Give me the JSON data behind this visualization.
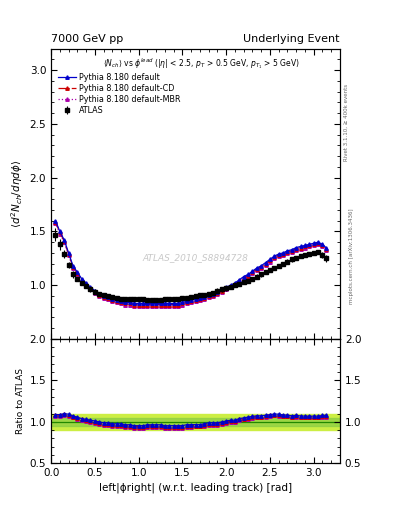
{
  "title_left": "7000 GeV pp",
  "title_right": "Underlying Event",
  "xlabel": "left|ϕright| (w.r.t. leading track) [rad]",
  "ylabel_main": "⟨d²N$_{ch}$/dηdϕ⟩",
  "ylabel_ratio": "Ratio to ATLAS",
  "watermark": "ATLAS_2010_S8894728",
  "right_label": "mcplots.cern.ch [arXiv:1306.3436]",
  "right_label2": "Rivet 3.1.10, ≥ 400k events",
  "xlim": [
    0,
    3.3
  ],
  "ylim_main": [
    0.5,
    3.2
  ],
  "ylim_ratio": [
    0.5,
    2.0
  ],
  "yticks_main": [
    1.0,
    1.5,
    2.0,
    2.5,
    3.0
  ],
  "yticks_ratio": [
    0.5,
    1.0,
    1.5,
    2.0
  ],
  "data_atlas_x": [
    0.05,
    0.1,
    0.15,
    0.2,
    0.25,
    0.3,
    0.35,
    0.4,
    0.45,
    0.5,
    0.55,
    0.6,
    0.65,
    0.7,
    0.75,
    0.8,
    0.85,
    0.9,
    0.95,
    1.0,
    1.05,
    1.1,
    1.15,
    1.2,
    1.25,
    1.3,
    1.35,
    1.4,
    1.45,
    1.5,
    1.55,
    1.6,
    1.65,
    1.7,
    1.75,
    1.8,
    1.85,
    1.9,
    1.95,
    2.0,
    2.05,
    2.1,
    2.15,
    2.2,
    2.25,
    2.3,
    2.35,
    2.4,
    2.45,
    2.5,
    2.55,
    2.6,
    2.65,
    2.7,
    2.75,
    2.8,
    2.85,
    2.9,
    2.95,
    3.0,
    3.05,
    3.1,
    3.14
  ],
  "data_atlas_y": [
    1.47,
    1.38,
    1.29,
    1.19,
    1.1,
    1.06,
    1.02,
    0.99,
    0.96,
    0.94,
    0.92,
    0.91,
    0.9,
    0.89,
    0.88,
    0.87,
    0.87,
    0.87,
    0.87,
    0.87,
    0.87,
    0.86,
    0.86,
    0.86,
    0.86,
    0.87,
    0.87,
    0.87,
    0.87,
    0.88,
    0.88,
    0.89,
    0.9,
    0.91,
    0.91,
    0.92,
    0.93,
    0.95,
    0.96,
    0.97,
    0.98,
    1.0,
    1.01,
    1.03,
    1.04,
    1.06,
    1.08,
    1.1,
    1.12,
    1.14,
    1.16,
    1.18,
    1.2,
    1.22,
    1.24,
    1.25,
    1.27,
    1.28,
    1.29,
    1.3,
    1.31,
    1.28,
    1.25
  ],
  "data_atlas_yerr": [
    0.06,
    0.05,
    0.04,
    0.03,
    0.03,
    0.02,
    0.02,
    0.02,
    0.02,
    0.02,
    0.02,
    0.02,
    0.02,
    0.02,
    0.02,
    0.02,
    0.02,
    0.02,
    0.02,
    0.02,
    0.02,
    0.02,
    0.02,
    0.02,
    0.02,
    0.02,
    0.02,
    0.02,
    0.02,
    0.02,
    0.02,
    0.02,
    0.02,
    0.02,
    0.02,
    0.02,
    0.02,
    0.02,
    0.02,
    0.02,
    0.02,
    0.02,
    0.02,
    0.02,
    0.02,
    0.02,
    0.02,
    0.02,
    0.02,
    0.02,
    0.02,
    0.02,
    0.02,
    0.02,
    0.02,
    0.02,
    0.02,
    0.02,
    0.02,
    0.02,
    0.02,
    0.03,
    0.03
  ],
  "pythia_default_x": [
    0.05,
    0.1,
    0.15,
    0.2,
    0.25,
    0.3,
    0.35,
    0.4,
    0.45,
    0.5,
    0.55,
    0.6,
    0.65,
    0.7,
    0.75,
    0.8,
    0.85,
    0.9,
    0.95,
    1.0,
    1.05,
    1.1,
    1.15,
    1.2,
    1.25,
    1.3,
    1.35,
    1.4,
    1.45,
    1.5,
    1.55,
    1.6,
    1.65,
    1.7,
    1.75,
    1.8,
    1.85,
    1.9,
    1.95,
    2.0,
    2.05,
    2.1,
    2.15,
    2.2,
    2.25,
    2.3,
    2.35,
    2.4,
    2.45,
    2.5,
    2.55,
    2.6,
    2.65,
    2.7,
    2.75,
    2.8,
    2.85,
    2.9,
    2.95,
    3.0,
    3.05,
    3.1,
    3.14
  ],
  "pythia_default_y": [
    1.6,
    1.5,
    1.42,
    1.3,
    1.18,
    1.12,
    1.06,
    1.02,
    0.98,
    0.95,
    0.92,
    0.9,
    0.89,
    0.87,
    0.86,
    0.85,
    0.84,
    0.84,
    0.83,
    0.83,
    0.83,
    0.83,
    0.83,
    0.83,
    0.83,
    0.83,
    0.83,
    0.83,
    0.83,
    0.84,
    0.85,
    0.86,
    0.87,
    0.88,
    0.89,
    0.91,
    0.92,
    0.94,
    0.96,
    0.98,
    1.0,
    1.02,
    1.05,
    1.08,
    1.1,
    1.13,
    1.16,
    1.18,
    1.21,
    1.24,
    1.27,
    1.29,
    1.3,
    1.32,
    1.33,
    1.35,
    1.36,
    1.37,
    1.38,
    1.39,
    1.4,
    1.38,
    1.35
  ],
  "pythia_cd_y": [
    1.59,
    1.49,
    1.41,
    1.29,
    1.17,
    1.11,
    1.05,
    1.01,
    0.97,
    0.94,
    0.91,
    0.89,
    0.88,
    0.86,
    0.85,
    0.84,
    0.83,
    0.83,
    0.82,
    0.82,
    0.82,
    0.82,
    0.82,
    0.82,
    0.82,
    0.82,
    0.82,
    0.82,
    0.82,
    0.83,
    0.84,
    0.85,
    0.86,
    0.87,
    0.88,
    0.9,
    0.91,
    0.93,
    0.95,
    0.97,
    0.99,
    1.01,
    1.04,
    1.07,
    1.09,
    1.12,
    1.15,
    1.17,
    1.2,
    1.23,
    1.26,
    1.28,
    1.29,
    1.31,
    1.32,
    1.34,
    1.35,
    1.36,
    1.37,
    1.38,
    1.39,
    1.37,
    1.34
  ],
  "pythia_mbr_y": [
    1.58,
    1.48,
    1.4,
    1.28,
    1.16,
    1.1,
    1.04,
    1.0,
    0.96,
    0.93,
    0.9,
    0.88,
    0.87,
    0.85,
    0.84,
    0.83,
    0.82,
    0.82,
    0.81,
    0.81,
    0.81,
    0.81,
    0.81,
    0.81,
    0.81,
    0.81,
    0.81,
    0.81,
    0.81,
    0.82,
    0.83,
    0.84,
    0.85,
    0.86,
    0.87,
    0.89,
    0.9,
    0.92,
    0.94,
    0.96,
    0.98,
    1.0,
    1.03,
    1.06,
    1.08,
    1.11,
    1.14,
    1.16,
    1.19,
    1.22,
    1.25,
    1.27,
    1.28,
    1.3,
    1.31,
    1.33,
    1.34,
    1.35,
    1.36,
    1.37,
    1.38,
    1.36,
    1.33
  ],
  "color_atlas": "#000000",
  "color_default": "#0000cc",
  "color_cd": "#cc0000",
  "color_mbr": "#aa00aa",
  "band_yellow": "#ccee44",
  "band_green": "#88cc44",
  "band_line": "#228800"
}
